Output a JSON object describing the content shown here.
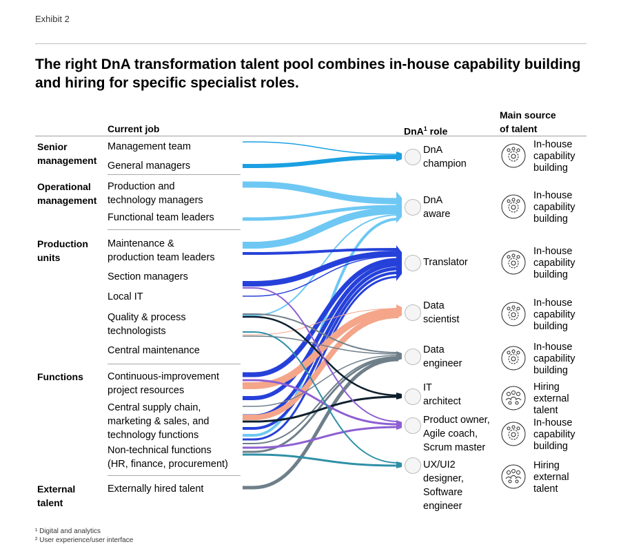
{
  "exhibit": "Exhibit 2",
  "title_lines": [
    "The right DnA transformation talent pool combines in-house capability building",
    "and hiring for specific specialist roles."
  ],
  "headers": {
    "current_job": "Current job",
    "dna_role_prefix": "DnA",
    "dna_role_sup": "1",
    "dna_role_suffix": " role",
    "source_line1": "Main source",
    "source_line2": "of talent"
  },
  "groups": [
    {
      "lines": [
        "Senior",
        "management"
      ]
    },
    {
      "lines": [
        "Operational",
        "management"
      ]
    },
    {
      "lines": [
        "Production",
        "units"
      ]
    },
    {
      "lines": [
        "Functions"
      ]
    },
    {
      "lines": [
        "External",
        "talent"
      ]
    }
  ],
  "jobs": [
    {
      "lines": [
        "Management team"
      ]
    },
    {
      "lines": [
        "General managers"
      ]
    },
    {
      "lines": [
        "Production and",
        "technology managers"
      ]
    },
    {
      "lines": [
        "Functional team leaders"
      ]
    },
    {
      "lines": [
        "Maintenance &",
        "production team leaders"
      ]
    },
    {
      "lines": [
        "Section managers"
      ]
    },
    {
      "lines": [
        "Local IT"
      ]
    },
    {
      "lines": [
        "Quality & process",
        "technologists"
      ]
    },
    {
      "lines": [
        "Central maintenance"
      ]
    },
    {
      "lines": [
        "Continuous-improvement",
        "project resources"
      ]
    },
    {
      "lines": [
        "Central supply chain,",
        "marketing & sales, and",
        "technology functions"
      ]
    },
    {
      "lines": [
        "Non-technical functions",
        "(HR, finance, procurement)"
      ]
    },
    {
      "lines": [
        "Externally hired talent"
      ]
    }
  ],
  "roles": [
    {
      "lines": [
        "DnA",
        "champion"
      ],
      "color": "#1ba0e2",
      "icon": "person-icon"
    },
    {
      "lines": [
        "DnA",
        "aware"
      ],
      "color": "#6ec8f3",
      "icon": "person-icon"
    },
    {
      "lines": [
        "Translator"
      ],
      "color": "#2641d9",
      "icon": "person-icon"
    },
    {
      "lines": [
        "Data",
        "scientist"
      ],
      "color": "#f4a58a",
      "icon": "person-icon"
    },
    {
      "lines": [
        "Data",
        "engineer"
      ],
      "color": "#6f7f8a",
      "icon": "person-icon"
    },
    {
      "lines": [
        "IT",
        "architect"
      ],
      "color": "#0d1f2d",
      "icon": "person-icon"
    },
    {
      "lines": [
        "Product owner,",
        "Agile coach,",
        "Scrum master"
      ],
      "color": "#8d5fd3",
      "icon": "person-icon"
    },
    {
      "lines": [
        "UX/UI2",
        "designer,",
        "Software",
        "engineer"
      ],
      "color": "#2f8fa6",
      "icon": "person-icon"
    }
  ],
  "sources": [
    {
      "lines": [
        "In-house",
        "capability",
        "building"
      ],
      "icon": "gear-people-icon"
    },
    {
      "lines": [
        "In-house",
        "capability",
        "building"
      ],
      "icon": "gear-people-icon"
    },
    {
      "lines": [
        "In-house",
        "capability",
        "building"
      ],
      "icon": "gear-people-icon"
    },
    {
      "lines": [
        "In-house",
        "capability",
        "building"
      ],
      "icon": "gear-people-icon"
    },
    {
      "lines": [
        "In-house",
        "capability",
        "building"
      ],
      "icon": "gear-people-icon"
    },
    {
      "lines": [
        "Hiring",
        "external",
        "talent"
      ],
      "icon": "team-icon"
    },
    {
      "lines": [
        "In-house",
        "capability",
        "building"
      ],
      "icon": "gear-people-icon"
    },
    {
      "lines": [
        "Hiring",
        "external",
        "talent"
      ],
      "icon": "team-icon"
    }
  ],
  "footnotes": [
    "¹ Digital and analytics",
    "² User experience/user interface"
  ]
}
